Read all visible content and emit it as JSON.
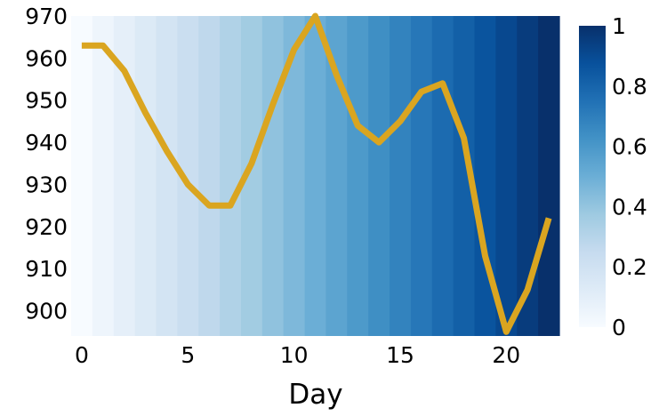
{
  "chart_data": {
    "type": "line",
    "title": "",
    "xlabel": "Day",
    "ylabel": "",
    "x": [
      0,
      1,
      2,
      3,
      4,
      5,
      6,
      7,
      8,
      9,
      10,
      11,
      12,
      13,
      14,
      15,
      16,
      17,
      18,
      19,
      20,
      21,
      22
    ],
    "series": [
      {
        "values": [
          963,
          963,
          957,
          947,
          938,
          930,
          925,
          925,
          935,
          949,
          962,
          970,
          956,
          944,
          940,
          945,
          952,
          954,
          941,
          913,
          895,
          905,
          922
        ],
        "color": "#DAA520"
      }
    ],
    "background_gradient": {
      "colormap": "Blues",
      "values": [
        0.0,
        0.0455,
        0.0909,
        0.1364,
        0.1818,
        0.2273,
        0.2727,
        0.3182,
        0.3636,
        0.4091,
        0.4545,
        0.5,
        0.5455,
        0.5909,
        0.6364,
        0.6818,
        0.7273,
        0.7727,
        0.8182,
        0.8636,
        0.9091,
        0.9545,
        1.0
      ]
    },
    "xlim": [
      -0.5,
      22.5
    ],
    "ylim": [
      894,
      970
    ],
    "xticks": [
      "0",
      "5",
      "10",
      "15",
      "20"
    ],
    "yticks": [
      "900",
      "910",
      "920",
      "930",
      "940",
      "950",
      "960",
      "970"
    ],
    "colorbar": {
      "range": [
        0,
        1
      ],
      "ticks": [
        "0",
        "0.2",
        "0.4",
        "0.6",
        "0.8",
        "1"
      ]
    },
    "grid": false,
    "legend": "none"
  }
}
